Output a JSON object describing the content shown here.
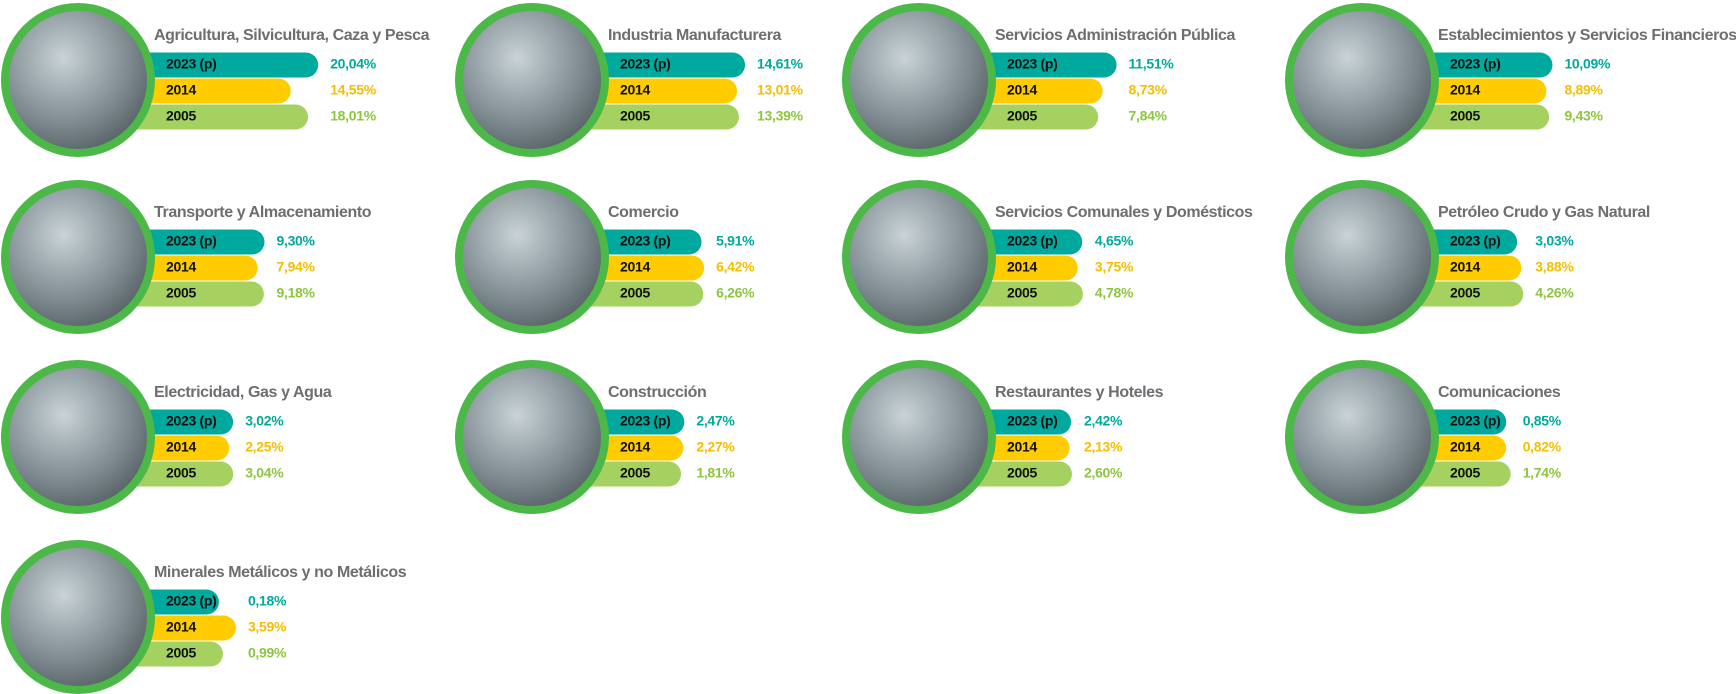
{
  "years": [
    "2023 (p)",
    "2014",
    "2005"
  ],
  "sectors": [
    {
      "name": "Agricultura, Silvicultura, Caza y Pesca",
      "values": [
        20.04,
        14.55,
        18.01
      ],
      "value_labels": [
        "20,04%",
        "14,55%",
        "18,01%"
      ]
    },
    {
      "name": "Industria Manufacturera",
      "values": [
        14.61,
        13.01,
        13.39
      ],
      "value_labels": [
        "14,61%",
        "13,01%",
        "13,39%"
      ]
    },
    {
      "name": "Servicios Administración Pública",
      "values": [
        11.51,
        8.73,
        7.84
      ],
      "value_labels": [
        "11,51%",
        "8,73%",
        "7,84%"
      ]
    },
    {
      "name": "Establecimientos y Servicios Financieros",
      "values": [
        10.09,
        8.89,
        9.43
      ],
      "value_labels": [
        "10,09%",
        "8,89%",
        "9,43%"
      ]
    },
    {
      "name": "Transporte y Almacenamiento",
      "values": [
        9.3,
        7.94,
        9.18
      ],
      "value_labels": [
        "9,30%",
        "7,94%",
        "9,18%"
      ]
    },
    {
      "name": "Comercio",
      "values": [
        5.91,
        6.42,
        6.26
      ],
      "value_labels": [
        "5,91%",
        "6,42%",
        "6,26%"
      ]
    },
    {
      "name": "Servicios Comunales y Domésticos",
      "values": [
        4.65,
        3.75,
        4.78
      ],
      "value_labels": [
        "4,65%",
        "3,75%",
        "4,78%"
      ]
    },
    {
      "name": "Petróleo Crudo y Gas Natural",
      "values": [
        3.03,
        3.88,
        4.26
      ],
      "value_labels": [
        "3,03%",
        "3,88%",
        "4,26%"
      ]
    },
    {
      "name": "Electricidad, Gas y Agua",
      "values": [
        3.02,
        2.25,
        3.04
      ],
      "value_labels": [
        "3,02%",
        "2,25%",
        "3,04%"
      ]
    },
    {
      "name": "Construcción",
      "values": [
        2.47,
        2.27,
        1.81
      ],
      "value_labels": [
        "2,47%",
        "2,27%",
        "1,81%"
      ]
    },
    {
      "name": "Restaurantes y Hoteles",
      "values": [
        2.42,
        2.13,
        2.6
      ],
      "value_labels": [
        "2,42%",
        "2,13%",
        "2,60%"
      ]
    },
    {
      "name": "Comunicaciones",
      "values": [
        0.85,
        0.82,
        1.74
      ],
      "value_labels": [
        "0,85%",
        "0,82%",
        "1,74%"
      ]
    },
    {
      "name": "Minerales Metálicos y no Metálicos",
      "values": [
        0.18,
        3.59,
        0.99
      ],
      "value_labels": [
        "0,18%",
        "3,59%",
        "0,99%"
      ]
    }
  ]
}
